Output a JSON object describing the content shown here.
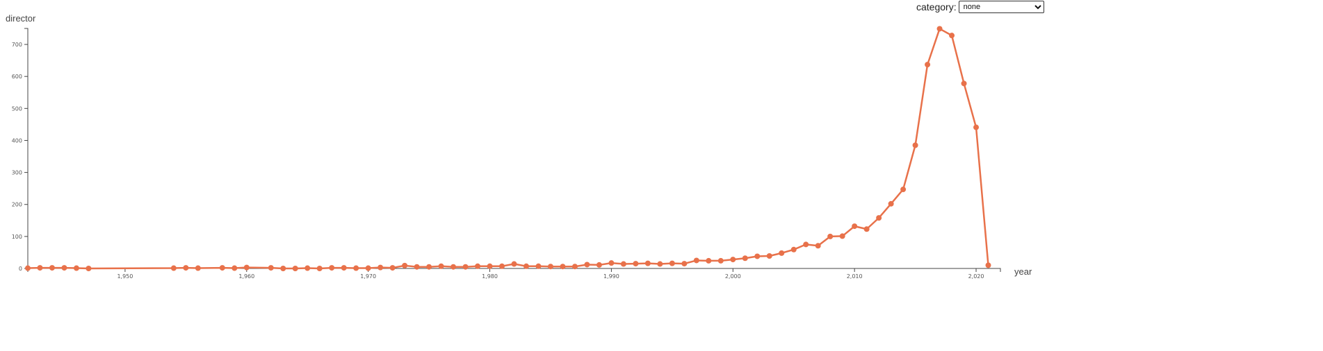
{
  "controls": {
    "category_label": "category:",
    "category_options": [
      "none"
    ],
    "category_selected": "none"
  },
  "chart_data": {
    "type": "line",
    "ylabel": "director",
    "xlabel": "year",
    "xlim": [
      1942,
      2022
    ],
    "ylim": [
      0,
      750
    ],
    "x_ticks": [
      1950,
      1960,
      1970,
      1980,
      1990,
      2000,
      2010,
      2020
    ],
    "x_tick_labels": [
      "1,950",
      "1,960",
      "1,970",
      "1,980",
      "1,990",
      "2,000",
      "2,010",
      "2,020"
    ],
    "y_ticks": [
      0,
      100,
      200,
      300,
      400,
      500,
      600,
      700
    ],
    "y_tick_labels": [
      "0",
      "100",
      "200",
      "300",
      "400",
      "500",
      "600",
      "700"
    ],
    "grid": false,
    "series": [
      {
        "color": "#e8714a",
        "x": [
          1942,
          1943,
          1944,
          1945,
          1946,
          1947,
          1954,
          1955,
          1956,
          1958,
          1959,
          1960,
          1962,
          1963,
          1964,
          1965,
          1966,
          1967,
          1968,
          1969,
          1970,
          1971,
          1972,
          1973,
          1974,
          1975,
          1976,
          1977,
          1978,
          1979,
          1980,
          1981,
          1982,
          1983,
          1984,
          1985,
          1986,
          1987,
          1988,
          1989,
          1990,
          1991,
          1992,
          1993,
          1994,
          1995,
          1996,
          1997,
          1998,
          1999,
          2000,
          2001,
          2002,
          2003,
          2004,
          2005,
          2006,
          2007,
          2008,
          2009,
          2010,
          2011,
          2012,
          2013,
          2014,
          2015,
          2016,
          2017,
          2018,
          2019,
          2020,
          2021
        ],
        "y": [
          1,
          2,
          2,
          2,
          1,
          0,
          1,
          2,
          1,
          2,
          1,
          3,
          2,
          0,
          0,
          1,
          0,
          2,
          2,
          1,
          1,
          3,
          2,
          9,
          5,
          5,
          7,
          5,
          5,
          7,
          7,
          7,
          14,
          7,
          7,
          6,
          6,
          6,
          12,
          11,
          17,
          14,
          15,
          16,
          14,
          16,
          15,
          25,
          24,
          24,
          28,
          32,
          38,
          39,
          48,
          59,
          75,
          71,
          100,
          101,
          132,
          123,
          158,
          202,
          247,
          385,
          637,
          749,
          728,
          578,
          441,
          10
        ]
      }
    ]
  }
}
